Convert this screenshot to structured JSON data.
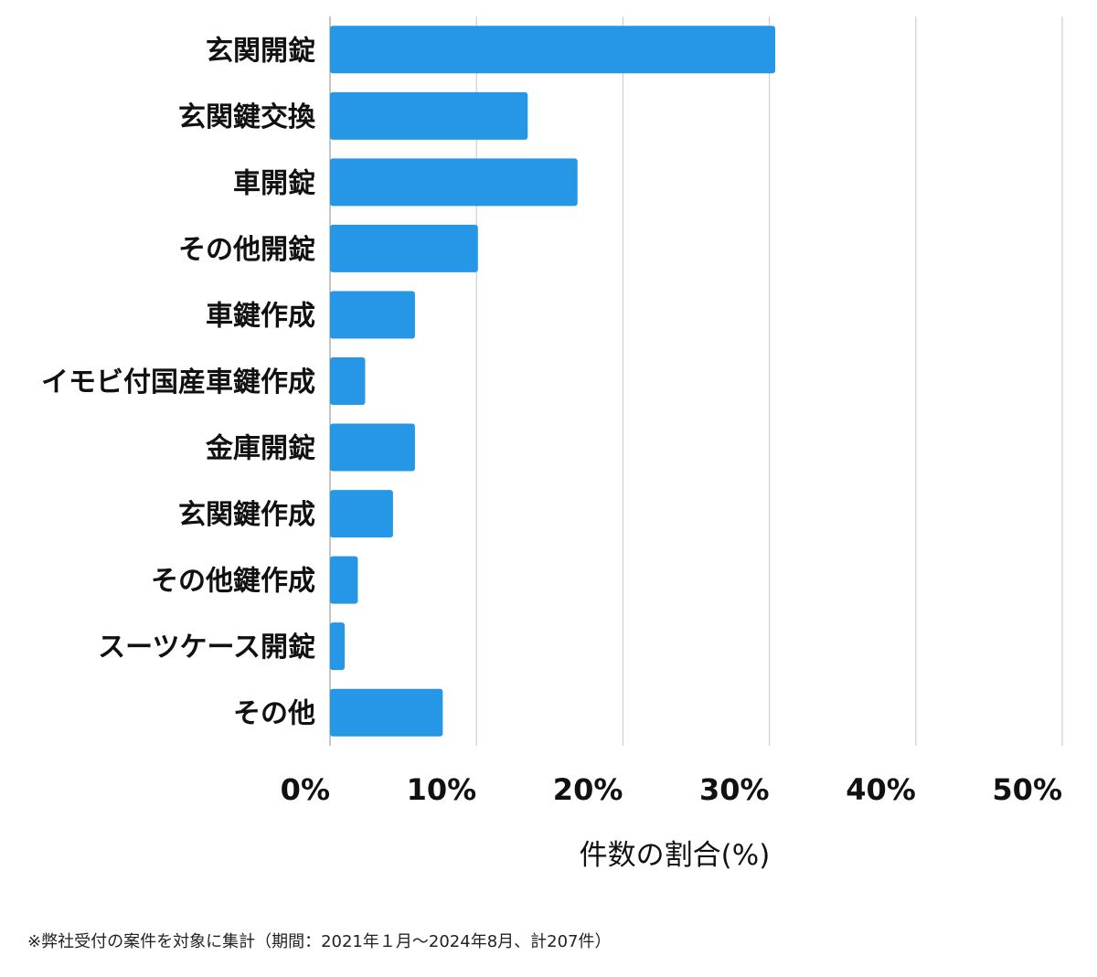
{
  "chart_data": {
    "type": "bar",
    "orientation": "horizontal",
    "categories": [
      "玄関開錠",
      "玄関鍵交換",
      "車開錠",
      "その他開錠",
      "車鍵作成",
      "イモビ付国産車鍵作成",
      "金庫開錠",
      "玄関鍵作成",
      "その他鍵作成",
      "スーツケース開錠",
      "その他"
    ],
    "values": [
      30.4,
      13.5,
      16.9,
      10.1,
      5.8,
      2.4,
      5.8,
      4.3,
      1.9,
      1.0,
      7.7
    ],
    "xlabel": "件数の割合(%)",
    "ylabel": "",
    "xlim": [
      0,
      50
    ],
    "xticks": [
      0,
      10,
      20,
      30,
      40,
      50
    ],
    "xtick_labels": [
      "0%",
      "10%",
      "20%",
      "30%",
      "40%",
      "50%"
    ],
    "grid": true,
    "bar_color": "#2597e6"
  },
  "footnote": "※弊社受付の案件を対象に集計（期間：2021年１月〜2024年8月、計207件）"
}
